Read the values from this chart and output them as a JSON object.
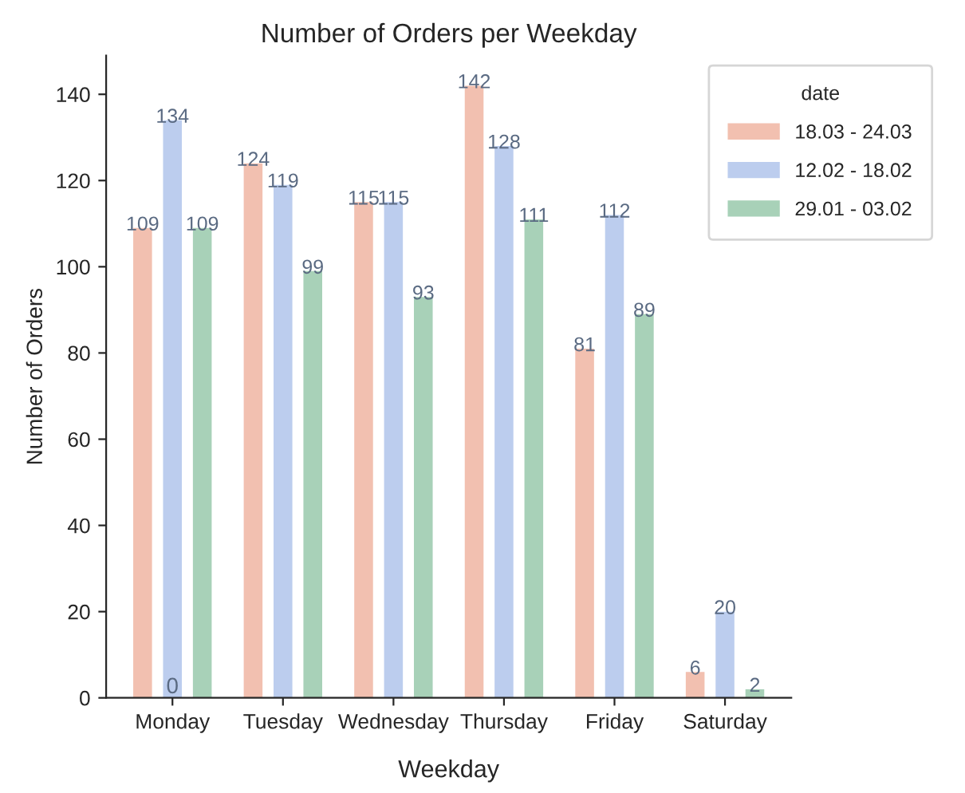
{
  "chart_data": {
    "type": "bar",
    "title": "Number of Orders per Weekday",
    "xlabel": "Weekday",
    "ylabel": "Number of Orders",
    "legend_title": "date",
    "categories": [
      "Monday",
      "Tuesday",
      "Wednesday",
      "Thursday",
      "Friday",
      "Saturday"
    ],
    "series": [
      {
        "name": "18.03 - 24.03",
        "color": "#f2c0b0",
        "values": [
          109,
          124,
          115,
          142,
          81,
          6
        ]
      },
      {
        "name": "12.02 - 18.02",
        "color": "#bccdee",
        "values": [
          134,
          119,
          115,
          128,
          112,
          20
        ]
      },
      {
        "name": "29.01 - 03.02",
        "color": "#a8d1b8",
        "values": [
          109,
          99,
          93,
          111,
          89,
          2
        ]
      }
    ],
    "data_labels": true,
    "annotations": [
      {
        "text": "0",
        "x": "Monday",
        "y": 0
      }
    ],
    "ylim": [
      0,
      149
    ],
    "yticks": [
      0,
      20,
      40,
      60,
      80,
      100,
      120,
      140
    ],
    "grid": false,
    "legend": "top right"
  }
}
